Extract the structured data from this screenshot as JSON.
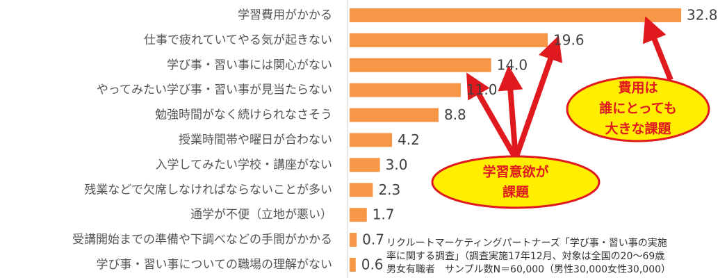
{
  "chart_data": {
    "type": "bar",
    "orientation": "horizontal",
    "categories": [
      "学習費用がかかる",
      "仕事で疲れていてやる気が起きない",
      "学び事・習い事には関心がない",
      "やってみたい学び事・習い事が見当たらない",
      "勉強時間がなく続けられなさそう",
      "授業時間帯や曜日が合わない",
      "入学してみたい学校・講座がない",
      "残業などで欠席しなければならないことが多い",
      "通学が不便（立地が悪い）",
      "受講開始までの準備や下調べなどの手間がかかる",
      "学び事・習い事についての職場の理解がない"
    ],
    "values": [
      32.8,
      19.6,
      14.0,
      11.0,
      8.8,
      4.2,
      3.0,
      2.3,
      1.7,
      0.7,
      0.6
    ],
    "value_labels": [
      "32.8",
      "19.6",
      "14.0",
      "11.0",
      "8.8",
      "4.2",
      "3.0",
      "2.3",
      "1.7",
      "0.7",
      "0.6"
    ],
    "color": "#f79646",
    "xlim": [
      0,
      35
    ],
    "annotations": [
      {
        "lines": [
          "費用は",
          "誰にとっても",
          "大きな課題"
        ]
      },
      {
        "lines": [
          "学習意欲が",
          "課題"
        ]
      }
    ],
    "note": [
      "リクルートマーケティングパートナーズ「学び事・習い事の実施",
      "率に関する調査」（調査実施17年12月、対象は全国の20～69歳",
      "男女有職者　サンプル数N＝60,000（男性30,000女性30,000）"
    ]
  }
}
